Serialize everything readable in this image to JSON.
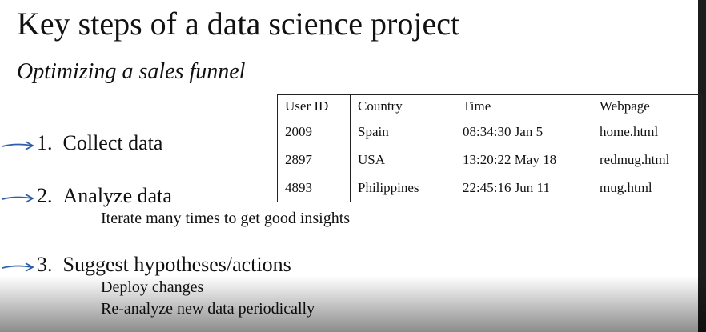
{
  "slide": {
    "title": "Key steps of a data science project",
    "subtitle": "Optimizing a sales funnel",
    "steps": [
      {
        "number": "1.",
        "label": "Collect data",
        "notes": []
      },
      {
        "number": "2.",
        "label": "Analyze data",
        "notes": [
          "Iterate many times to get good insights"
        ]
      },
      {
        "number": "3.",
        "label": "Suggest hypotheses/actions",
        "notes": [
          "Deploy changes",
          "Re-analyze new data periodically"
        ]
      }
    ]
  },
  "table": {
    "headers": [
      "User ID",
      "Country",
      "Time",
      "Webpage"
    ],
    "rows": [
      [
        "2009",
        "Spain",
        "08:34:30 Jan 5",
        "home.html"
      ],
      [
        "2897",
        "USA",
        "13:20:22 May 18",
        "redmug.html"
      ],
      [
        "4893",
        "Philippines",
        "22:45:16 Jun 11",
        "mug.html"
      ]
    ]
  },
  "colors": {
    "arrow": "#2f5fa8",
    "text": "#111111",
    "edge": "#1c1c1c"
  }
}
